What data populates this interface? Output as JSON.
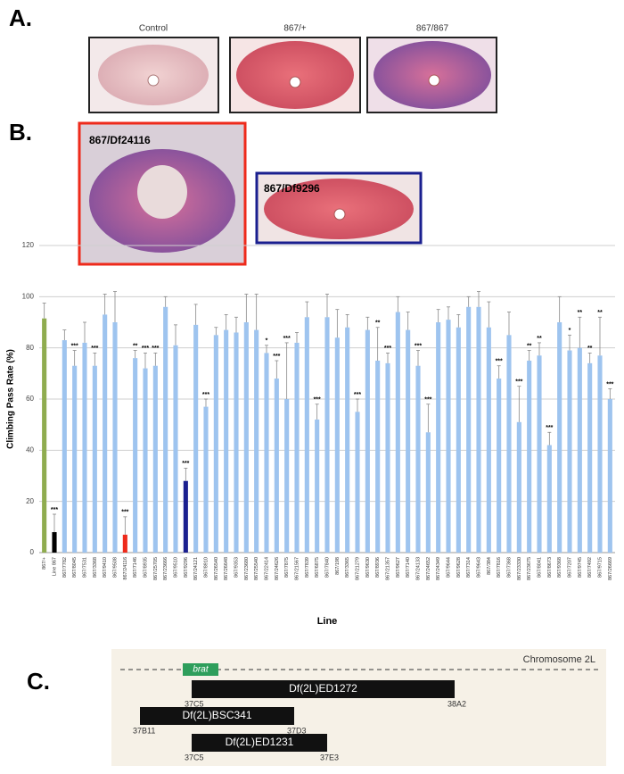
{
  "panels": {
    "a": "A.",
    "b": "B.",
    "c": "C."
  },
  "panel_a": {
    "captions": [
      "Control",
      "867/+",
      "867/867"
    ]
  },
  "panel_b": {
    "insets": [
      "867/Df24116",
      "867/Df9296"
    ]
  },
  "chart_data": {
    "type": "bar",
    "xlabel": "Line",
    "ylabel": "Climbing Pass Rate (%)",
    "ylim": [
      0,
      120
    ],
    "yticks": [
      0,
      20,
      40,
      60,
      80,
      100,
      120
    ],
    "grid": true,
    "categories": [
      "867/+",
      "Line 867",
      "867/7782",
      "867/8045",
      "867/7531",
      "867/3368",
      "867/9410",
      "867/9508",
      "867/24116",
      "867/7146",
      "867/8935",
      "867/25705",
      "867/23666",
      "867/9510",
      "867/9296",
      "867/24121",
      "867/8910",
      "867/26540",
      "867/26648",
      "867/9353",
      "867/23680",
      "867/25540",
      "867/22414",
      "867/24626",
      "867/7875",
      "867/21567",
      "867/7839",
      "867/6875",
      "867/7840",
      "867/198",
      "867/3365",
      "867/21279",
      "867/9630",
      "867/8936",
      "867/21357",
      "867/9627",
      "867/7140",
      "867/24133",
      "867/24652",
      "867/24349",
      "867/9644",
      "867/9628",
      "867/7314",
      "867/9643",
      "867/384",
      "867/7816",
      "867/7368",
      "867/23330",
      "867/23675",
      "867/8041",
      "867/8673",
      "867/9368",
      "867/7207",
      "867/9745",
      "867/7492",
      "867/9715",
      "867/26669"
    ],
    "values": [
      91.5,
      8,
      83,
      73,
      82,
      73,
      93,
      90,
      7,
      76,
      72,
      73,
      96,
      81,
      28,
      89,
      57,
      85,
      87,
      86,
      90,
      87,
      78,
      68,
      60,
      82,
      92,
      52,
      92,
      84,
      88,
      55,
      87,
      75,
      74,
      94,
      87,
      73,
      47,
      90,
      91,
      88,
      96,
      96,
      88,
      68,
      85,
      51,
      75,
      77,
      42,
      90,
      79,
      80,
      74,
      77,
      60
    ],
    "errors": [
      6,
      7,
      4,
      6,
      8,
      5,
      8,
      12,
      7,
      3,
      6,
      5,
      4,
      8,
      5,
      8,
      3,
      3,
      6,
      6,
      11,
      14,
      3,
      7,
      22,
      4,
      6,
      6,
      9,
      11,
      5,
      5,
      5,
      13,
      4,
      6,
      7,
      6,
      11,
      5,
      5,
      5,
      4,
      6,
      10,
      5,
      9,
      14,
      4,
      5,
      5,
      10,
      6,
      12,
      4,
      15,
      4
    ],
    "annotations": [
      null,
      "***",
      null,
      "***",
      null,
      "***",
      null,
      null,
      "***",
      "**",
      "***",
      "***",
      null,
      null,
      "***",
      null,
      "***",
      null,
      null,
      null,
      null,
      null,
      "*",
      "***",
      "***",
      null,
      null,
      "***",
      null,
      null,
      null,
      "***",
      null,
      "**",
      "***",
      null,
      null,
      "***",
      "***",
      null,
      null,
      null,
      null,
      null,
      null,
      "***",
      null,
      "***",
      "**",
      "**",
      "***",
      null,
      "*",
      "**",
      "**",
      "**",
      "***"
    ],
    "color": "#9ec4ef",
    "highlights": [
      {
        "index": 0,
        "color": "#8fac4f"
      },
      {
        "index": 1,
        "color": "#000000"
      },
      {
        "index": 8,
        "color": "#ee2a1b"
      },
      {
        "index": 14,
        "color": "#1a1f8f"
      }
    ]
  },
  "panel_c": {
    "chromosome": "Chromosome 2L",
    "gene": "brat",
    "deficiencies": [
      {
        "name": "Df(2L)ED1272",
        "start": "37C5",
        "end": "38A2"
      },
      {
        "name": "Df(2L)BSC341",
        "start": "37B11",
        "end": "37D3"
      },
      {
        "name": "Df(2L)ED1231",
        "start": "37C5",
        "end": "37E3"
      }
    ]
  }
}
